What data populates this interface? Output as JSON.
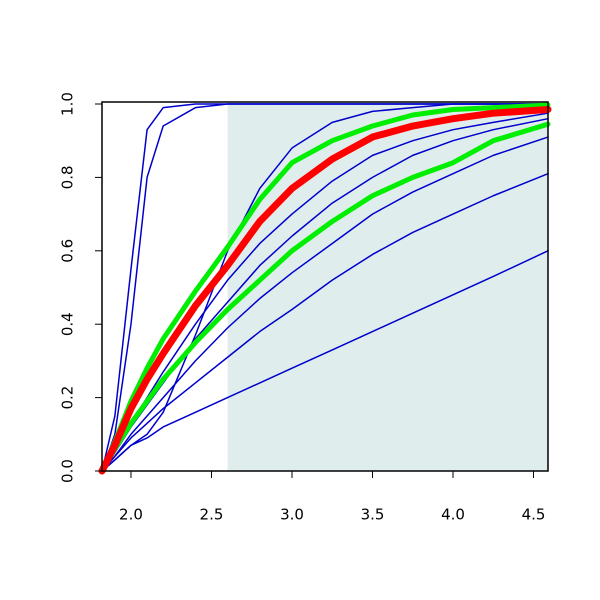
{
  "chart_data": {
    "type": "line",
    "x": [
      1.82,
      1.9,
      2.0,
      2.1,
      2.2,
      2.4,
      2.6,
      2.8,
      3.0,
      3.25,
      3.5,
      3.75,
      4.0,
      4.25,
      4.59
    ],
    "xlim": [
      1.82,
      4.59
    ],
    "ylim": [
      0,
      1
    ],
    "xticks": [
      {
        "value": 2.0,
        "label": "2.0"
      },
      {
        "value": 2.5,
        "label": "2.5"
      },
      {
        "value": 3.0,
        "label": "3.0"
      },
      {
        "value": 3.5,
        "label": "3.5"
      },
      {
        "value": 4.0,
        "label": "4.0"
      },
      {
        "value": 4.5,
        "label": "4.5"
      }
    ],
    "yticks": [
      {
        "value": 0,
        "label": "0.0"
      },
      {
        "value": 0.2,
        "label": "0.2"
      },
      {
        "value": 0.4,
        "label": "0.4"
      },
      {
        "value": 0.6,
        "label": "0.6"
      },
      {
        "value": 0.8,
        "label": "0.8"
      },
      {
        "value": 1.0,
        "label": "1.0"
      }
    ],
    "shade_x": [
      2.6,
      4.59
    ],
    "shade_color": "#e0eded",
    "series": [
      {
        "color": "#0000cd",
        "linewidth": 1.5,
        "values": [
          0,
          0.15,
          0.55,
          0.93,
          0.99,
          1,
          1,
          1,
          1,
          1,
          1,
          1,
          1,
          1,
          1
        ]
      },
      {
        "color": "#0000cd",
        "linewidth": 1.5,
        "values": [
          0,
          0.1,
          0.4,
          0.8,
          0.94,
          0.99,
          1,
          1,
          1,
          1,
          1,
          1,
          1,
          1,
          1
        ]
      },
      {
        "color": "#0000cd",
        "linewidth": 1.5,
        "values": [
          0,
          0.03,
          0.07,
          0.1,
          0.16,
          0.37,
          0.6,
          0.77,
          0.88,
          0.95,
          0.98,
          0.99,
          1,
          1,
          1
        ]
      },
      {
        "color": "#0000cd",
        "linewidth": 1.5,
        "values": [
          0,
          0.05,
          0.13,
          0.2,
          0.27,
          0.4,
          0.52,
          0.62,
          0.7,
          0.79,
          0.86,
          0.9,
          0.93,
          0.95,
          0.975
        ]
      },
      {
        "color": "#0000cd",
        "linewidth": 1.5,
        "values": [
          0,
          0.05,
          0.12,
          0.18,
          0.24,
          0.36,
          0.46,
          0.56,
          0.64,
          0.73,
          0.8,
          0.86,
          0.9,
          0.93,
          0.96
        ]
      },
      {
        "color": "#0000cd",
        "linewidth": 1.5,
        "values": [
          0,
          0.04,
          0.1,
          0.15,
          0.2,
          0.3,
          0.39,
          0.47,
          0.54,
          0.62,
          0.7,
          0.76,
          0.81,
          0.86,
          0.91
        ]
      },
      {
        "color": "#0000cd",
        "linewidth": 1.5,
        "values": [
          0,
          0.04,
          0.09,
          0.13,
          0.17,
          0.24,
          0.31,
          0.38,
          0.44,
          0.52,
          0.59,
          0.65,
          0.7,
          0.75,
          0.81
        ]
      },
      {
        "color": "#0000cd",
        "linewidth": 1.5,
        "values": [
          0,
          0.03,
          0.07,
          0.09,
          0.12,
          0.16,
          0.2,
          0.24,
          0.28,
          0.33,
          0.38,
          0.43,
          0.48,
          0.53,
          0.6
        ]
      },
      {
        "color": "#00ee00",
        "linewidth": 5,
        "values": [
          0,
          0.08,
          0.19,
          0.28,
          0.36,
          0.49,
          0.61,
          0.74,
          0.84,
          0.9,
          0.94,
          0.97,
          0.985,
          0.99,
          0.997
        ]
      },
      {
        "color": "#00ee00",
        "linewidth": 5,
        "values": [
          0,
          0.06,
          0.13,
          0.19,
          0.25,
          0.35,
          0.44,
          0.52,
          0.6,
          0.68,
          0.75,
          0.8,
          0.84,
          0.9,
          0.945
        ]
      },
      {
        "color": "#ff0000",
        "linewidth": 7,
        "values": [
          0,
          0.07,
          0.17,
          0.25,
          0.32,
          0.45,
          0.56,
          0.68,
          0.77,
          0.85,
          0.91,
          0.94,
          0.96,
          0.975,
          0.985
        ]
      }
    ]
  }
}
